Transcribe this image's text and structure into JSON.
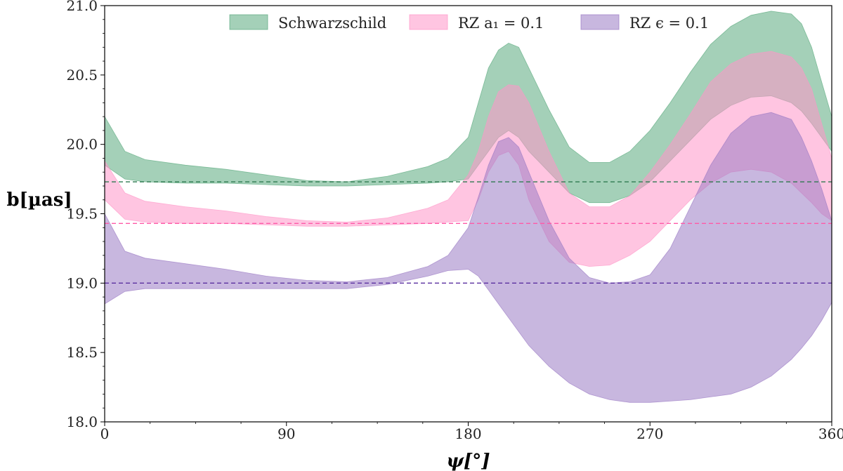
{
  "chart_data": {
    "type": "area",
    "title": "",
    "xlabel": "ψ[°]",
    "ylabel": "b[µas]",
    "xlim": [
      0,
      360
    ],
    "ylim": [
      18.0,
      21.0
    ],
    "xticks": [
      0,
      90,
      180,
      270,
      360
    ],
    "xtick_labels": [
      "0",
      "90",
      "180",
      "270",
      "360"
    ],
    "yticks": [
      18.0,
      18.5,
      19.0,
      19.5,
      20.0,
      20.5,
      21.0
    ],
    "ytick_labels": [
      "18.0",
      "18.5",
      "19.0",
      "19.5",
      "20.0",
      "20.5",
      "21.0"
    ],
    "legend_position": "top-center",
    "x": [
      0,
      10,
      20,
      40,
      60,
      80,
      100,
      120,
      140,
      160,
      170,
      180,
      185,
      190,
      195,
      200,
      205,
      210,
      220,
      230,
      240,
      250,
      260,
      270,
      280,
      290,
      300,
      310,
      320,
      330,
      340,
      345,
      350,
      355,
      360
    ],
    "series": [
      {
        "name": "Schwarzschild",
        "legend_label": "Schwarzschild",
        "color": "#5aaa7e",
        "reference_line": 19.73,
        "upper": [
          20.2,
          19.95,
          19.89,
          19.85,
          19.82,
          19.78,
          19.74,
          19.73,
          19.77,
          19.84,
          19.9,
          20.05,
          20.3,
          20.55,
          20.68,
          20.73,
          20.7,
          20.55,
          20.25,
          19.98,
          19.87,
          19.87,
          19.95,
          20.1,
          20.3,
          20.52,
          20.72,
          20.85,
          20.93,
          20.96,
          20.94,
          20.87,
          20.7,
          20.45,
          20.2
        ],
        "lower": [
          19.85,
          19.75,
          19.73,
          19.72,
          19.72,
          19.71,
          19.7,
          19.7,
          19.71,
          19.72,
          19.73,
          19.75,
          19.85,
          19.95,
          20.05,
          20.1,
          20.05,
          19.95,
          19.8,
          19.65,
          19.58,
          19.58,
          19.63,
          19.73,
          19.88,
          20.03,
          20.18,
          20.28,
          20.34,
          20.35,
          20.3,
          20.24,
          20.15,
          20.05,
          19.95
        ]
      },
      {
        "name": "RZ a1 = 0.1",
        "legend_label": "RZ a₁ = 0.1",
        "color": "#ff96c8",
        "reference_line": 19.43,
        "upper": [
          19.88,
          19.65,
          19.59,
          19.55,
          19.52,
          19.48,
          19.45,
          19.44,
          19.47,
          19.54,
          19.6,
          19.78,
          19.95,
          20.2,
          20.38,
          20.43,
          20.42,
          20.3,
          19.95,
          19.65,
          19.55,
          19.55,
          19.63,
          19.8,
          20.0,
          20.22,
          20.45,
          20.58,
          20.65,
          20.67,
          20.63,
          20.55,
          20.4,
          20.15,
          19.9
        ],
        "lower": [
          19.6,
          19.46,
          19.44,
          19.43,
          19.43,
          19.42,
          19.41,
          19.41,
          19.42,
          19.43,
          19.44,
          19.45,
          19.6,
          19.8,
          19.92,
          19.95,
          19.85,
          19.6,
          19.3,
          19.15,
          19.12,
          19.13,
          19.2,
          19.3,
          19.45,
          19.6,
          19.72,
          19.8,
          19.82,
          19.8,
          19.72,
          19.65,
          19.58,
          19.5,
          19.45
        ]
      },
      {
        "name": "RZ epsilon = 0.1",
        "legend_label": "RZ ϵ = 0.1",
        "color": "#9b7bc4",
        "reference_line": 19.0,
        "upper": [
          19.5,
          19.23,
          19.18,
          19.14,
          19.1,
          19.05,
          19.02,
          19.01,
          19.04,
          19.12,
          19.2,
          19.4,
          19.62,
          19.85,
          20.02,
          20.05,
          19.98,
          19.8,
          19.45,
          19.18,
          19.04,
          19.0,
          19.01,
          19.06,
          19.25,
          19.55,
          19.85,
          20.08,
          20.2,
          20.23,
          20.18,
          20.05,
          19.88,
          19.68,
          19.45
        ],
        "lower": [
          18.85,
          18.94,
          18.96,
          18.96,
          18.96,
          18.96,
          18.96,
          18.96,
          18.99,
          19.05,
          19.09,
          19.1,
          19.05,
          18.95,
          18.85,
          18.75,
          18.65,
          18.55,
          18.4,
          18.28,
          18.2,
          18.16,
          18.14,
          18.14,
          18.15,
          18.16,
          18.18,
          18.2,
          18.25,
          18.33,
          18.45,
          18.53,
          18.62,
          18.73,
          18.86
        ]
      }
    ]
  }
}
